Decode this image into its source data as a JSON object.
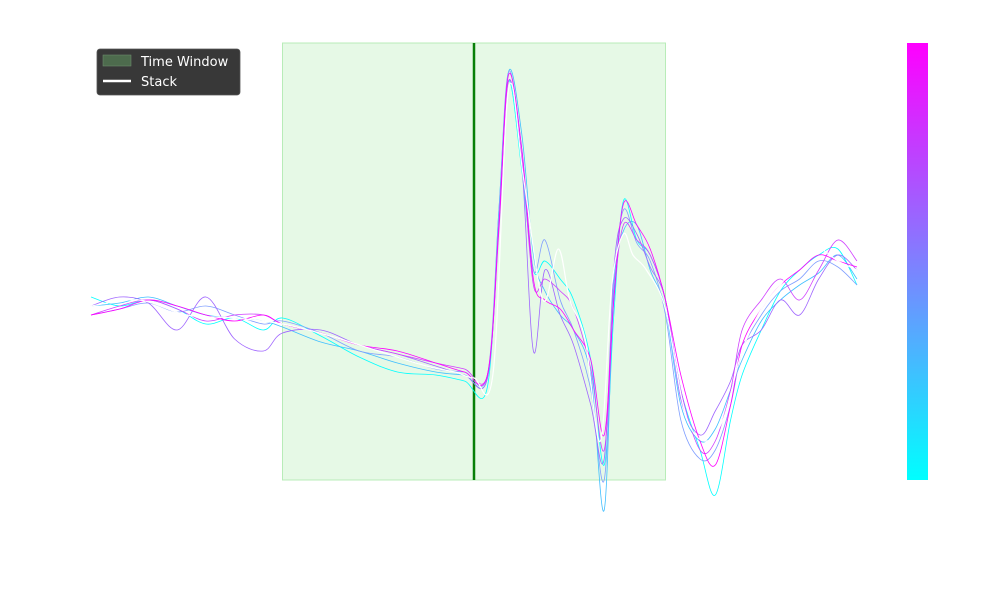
{
  "chart_data": {
    "type": "line",
    "title": "",
    "xlabel": "",
    "ylabel": "",
    "xlim": [
      -20,
      20
    ],
    "ylim": [
      -1.0,
      1.0
    ],
    "grid": false,
    "legend": {
      "placement": "top-left",
      "entries": [
        {
          "label": "Time Window",
          "swatch": "patch",
          "color": "#4d6b4d"
        },
        {
          "label": "Stack",
          "swatch": "line",
          "color": "#ffffff"
        }
      ]
    },
    "time_window": {
      "start": -10,
      "end": 10,
      "color": "#e6f9e6",
      "edge_color": "#b8ecb8"
    },
    "reference_line": {
      "x": 0,
      "color": "#087f08"
    },
    "colorbar": {
      "colormap": "cool",
      "low_color": "#00ffff",
      "high_color": "#ff00ff"
    },
    "stack": {
      "name": "Stack",
      "color": "#ffffff",
      "x": [
        -20,
        -17.5,
        -15,
        -12.5,
        -10,
        -7.5,
        -5,
        -2.5,
        -1,
        0,
        1,
        1.8,
        2.6,
        3.6,
        4.4,
        5,
        5.8,
        6.6,
        7.2,
        7.8,
        8.3,
        9,
        10,
        11,
        12,
        13,
        14,
        15,
        16,
        17,
        18,
        19,
        20
      ],
      "y": [
        0.03,
        0.05,
        0.0,
        -0.01,
        -0.03,
        -0.07,
        -0.12,
        -0.17,
        -0.19,
        -0.21,
        -0.19,
        0.75,
        0.45,
        0.05,
        0.22,
        0.05,
        -0.08,
        -0.42,
        0.1,
        0.27,
        0.2,
        0.15,
        0.02,
        -0.32,
        -0.42,
        -0.35,
        -0.12,
        0.02,
        0.1,
        0.18,
        0.22,
        0.18,
        0.15
      ]
    },
    "series": [
      {
        "color": "#00ffff",
        "x": [
          -20,
          -18.5,
          -17,
          -15.5,
          -14,
          -12.5,
          -11,
          -10,
          -8,
          -6,
          -4,
          -2,
          -0.5,
          0.7,
          1.3,
          1.8,
          2.5,
          3.1,
          3.7,
          4.5,
          5.2,
          6.1,
          6.8,
          7.3,
          7.8,
          8.5,
          9.2,
          10,
          10.8,
          11.8,
          12.6,
          13.4,
          14,
          15,
          16,
          17,
          18,
          19,
          20
        ],
        "y": [
          0.06,
          0.03,
          0.05,
          0.02,
          -0.03,
          -0.01,
          -0.05,
          -0.01,
          -0.07,
          -0.14,
          -0.19,
          -0.2,
          -0.22,
          -0.24,
          0.35,
          0.78,
          0.48,
          0.15,
          0.18,
          0.12,
          0.05,
          -0.15,
          -0.5,
          0.0,
          0.38,
          0.25,
          0.2,
          0.05,
          -0.25,
          -0.45,
          -0.6,
          -0.35,
          -0.2,
          -0.05,
          0.08,
          0.15,
          0.2,
          0.22,
          0.1
        ]
      },
      {
        "color": "#40bfff",
        "x": [
          -20,
          -18.5,
          -17,
          -15.5,
          -14,
          -12.5,
          -11,
          -10,
          -8,
          -6,
          -4,
          -2,
          -0.5,
          0.7,
          1.3,
          1.8,
          2.5,
          3.1,
          3.7,
          4.5,
          5.2,
          6.1,
          6.8,
          7.3,
          7.8,
          8.5,
          9.2,
          10,
          10.8,
          11.8,
          12.6,
          13.4,
          14,
          15,
          16,
          17,
          18,
          19,
          20
        ],
        "y": [
          0.03,
          0.04,
          0.06,
          0.03,
          0.0,
          -0.01,
          -0.02,
          -0.04,
          -0.09,
          -0.12,
          -0.16,
          -0.19,
          -0.2,
          -0.21,
          0.3,
          0.81,
          0.6,
          0.2,
          0.08,
          0.0,
          -0.05,
          -0.2,
          -0.65,
          0.1,
          0.28,
          0.3,
          0.15,
          0.02,
          -0.3,
          -0.42,
          -0.38,
          -0.25,
          -0.15,
          -0.02,
          0.05,
          0.1,
          0.14,
          0.2,
          0.12
        ]
      },
      {
        "color": "#809fff",
        "x": [
          -20,
          -18.5,
          -17,
          -15.5,
          -14,
          -12.5,
          -11,
          -10,
          -8,
          -6,
          -4,
          -2,
          -0.5,
          0.7,
          1.3,
          1.8,
          2.5,
          3.1,
          3.7,
          4.5,
          5.2,
          6.1,
          6.8,
          7.3,
          7.8,
          8.5,
          9.2,
          10,
          10.8,
          11.8,
          12.6,
          13.4,
          14,
          15,
          16,
          17,
          18,
          19,
          20
        ],
        "y": [
          0.0,
          0.02,
          0.04,
          0.01,
          0.03,
          0.0,
          -0.03,
          -0.02,
          -0.06,
          -0.12,
          -0.14,
          -0.18,
          -0.19,
          -0.2,
          0.35,
          0.81,
          0.55,
          0.15,
          0.25,
          0.05,
          -0.05,
          -0.25,
          -0.55,
          0.08,
          0.35,
          0.24,
          0.18,
          0.0,
          -0.35,
          -0.48,
          -0.45,
          -0.3,
          -0.12,
          0.0,
          0.08,
          0.12,
          0.18,
          0.16,
          0.1
        ]
      },
      {
        "color": "#a066ff",
        "x": [
          -20,
          -18.5,
          -17,
          -15.5,
          -14,
          -12.5,
          -11,
          -10,
          -8,
          -6,
          -4,
          -2,
          -0.5,
          0.7,
          1.3,
          1.8,
          2.5,
          3.1,
          3.7,
          4.5,
          5.2,
          6.1,
          6.8,
          7.3,
          7.8,
          8.5,
          9.2,
          10,
          10.8,
          11.8,
          12.6,
          13.4,
          14,
          15,
          16,
          17,
          18,
          19,
          20
        ],
        "y": [
          0.03,
          0.06,
          0.04,
          -0.05,
          0.06,
          -0.08,
          -0.12,
          -0.06,
          -0.05,
          -0.1,
          -0.13,
          -0.17,
          -0.2,
          -0.21,
          0.3,
          0.78,
          0.5,
          -0.12,
          0.15,
          0.0,
          -0.1,
          -0.3,
          -0.48,
          0.15,
          0.32,
          0.27,
          0.16,
          0.05,
          -0.28,
          -0.4,
          -0.32,
          -0.22,
          -0.1,
          -0.05,
          0.05,
          0.0,
          0.12,
          0.2,
          0.15
        ]
      },
      {
        "color": "#d040ff",
        "x": [
          -20,
          -18.5,
          -17,
          -15.5,
          -14,
          -12.5,
          -11,
          -10,
          -8,
          -6,
          -4,
          -2,
          -0.5,
          0.7,
          1.3,
          1.8,
          2.5,
          3.1,
          3.7,
          4.5,
          5.2,
          6.1,
          6.8,
          7.3,
          7.8,
          8.5,
          9.2,
          10,
          10.8,
          11.8,
          12.6,
          13.4,
          14,
          15,
          16,
          17,
          18,
          19,
          20
        ],
        "y": [
          0.0,
          0.03,
          0.05,
          0.02,
          -0.02,
          0.0,
          0.0,
          -0.03,
          -0.06,
          -0.1,
          -0.13,
          -0.16,
          -0.18,
          -0.2,
          0.28,
          0.78,
          0.52,
          0.1,
          0.12,
          0.08,
          0.02,
          -0.18,
          -0.45,
          0.05,
          0.3,
          0.25,
          0.2,
          0.05,
          -0.25,
          -0.45,
          -0.42,
          -0.25,
          -0.05,
          0.05,
          0.12,
          0.05,
          0.15,
          0.25,
          0.18
        ]
      },
      {
        "color": "#ff00ff",
        "x": [
          -20,
          -18.5,
          -17,
          -15.5,
          -14,
          -12.5,
          -11,
          -10,
          -8,
          -6,
          -4,
          -2,
          -0.5,
          0.7,
          1.3,
          1.8,
          2.5,
          3.1,
          3.7,
          4.5,
          5.2,
          6.1,
          6.8,
          7.3,
          7.8,
          8.5,
          9.2,
          10,
          10.8,
          11.8,
          12.6,
          13.4,
          14,
          15,
          16,
          17,
          18,
          19,
          20
        ],
        "y": [
          0.0,
          0.02,
          0.05,
          0.03,
          0.0,
          -0.02,
          0.0,
          -0.03,
          -0.06,
          -0.1,
          -0.12,
          -0.16,
          -0.19,
          -0.2,
          0.3,
          0.8,
          0.55,
          0.12,
          0.05,
          0.02,
          -0.05,
          -0.15,
          -0.4,
          0.05,
          0.37,
          0.3,
          0.22,
          0.05,
          -0.2,
          -0.42,
          -0.5,
          -0.3,
          -0.1,
          0.02,
          0.1,
          0.15,
          0.2,
          0.18,
          0.16
        ]
      }
    ]
  }
}
